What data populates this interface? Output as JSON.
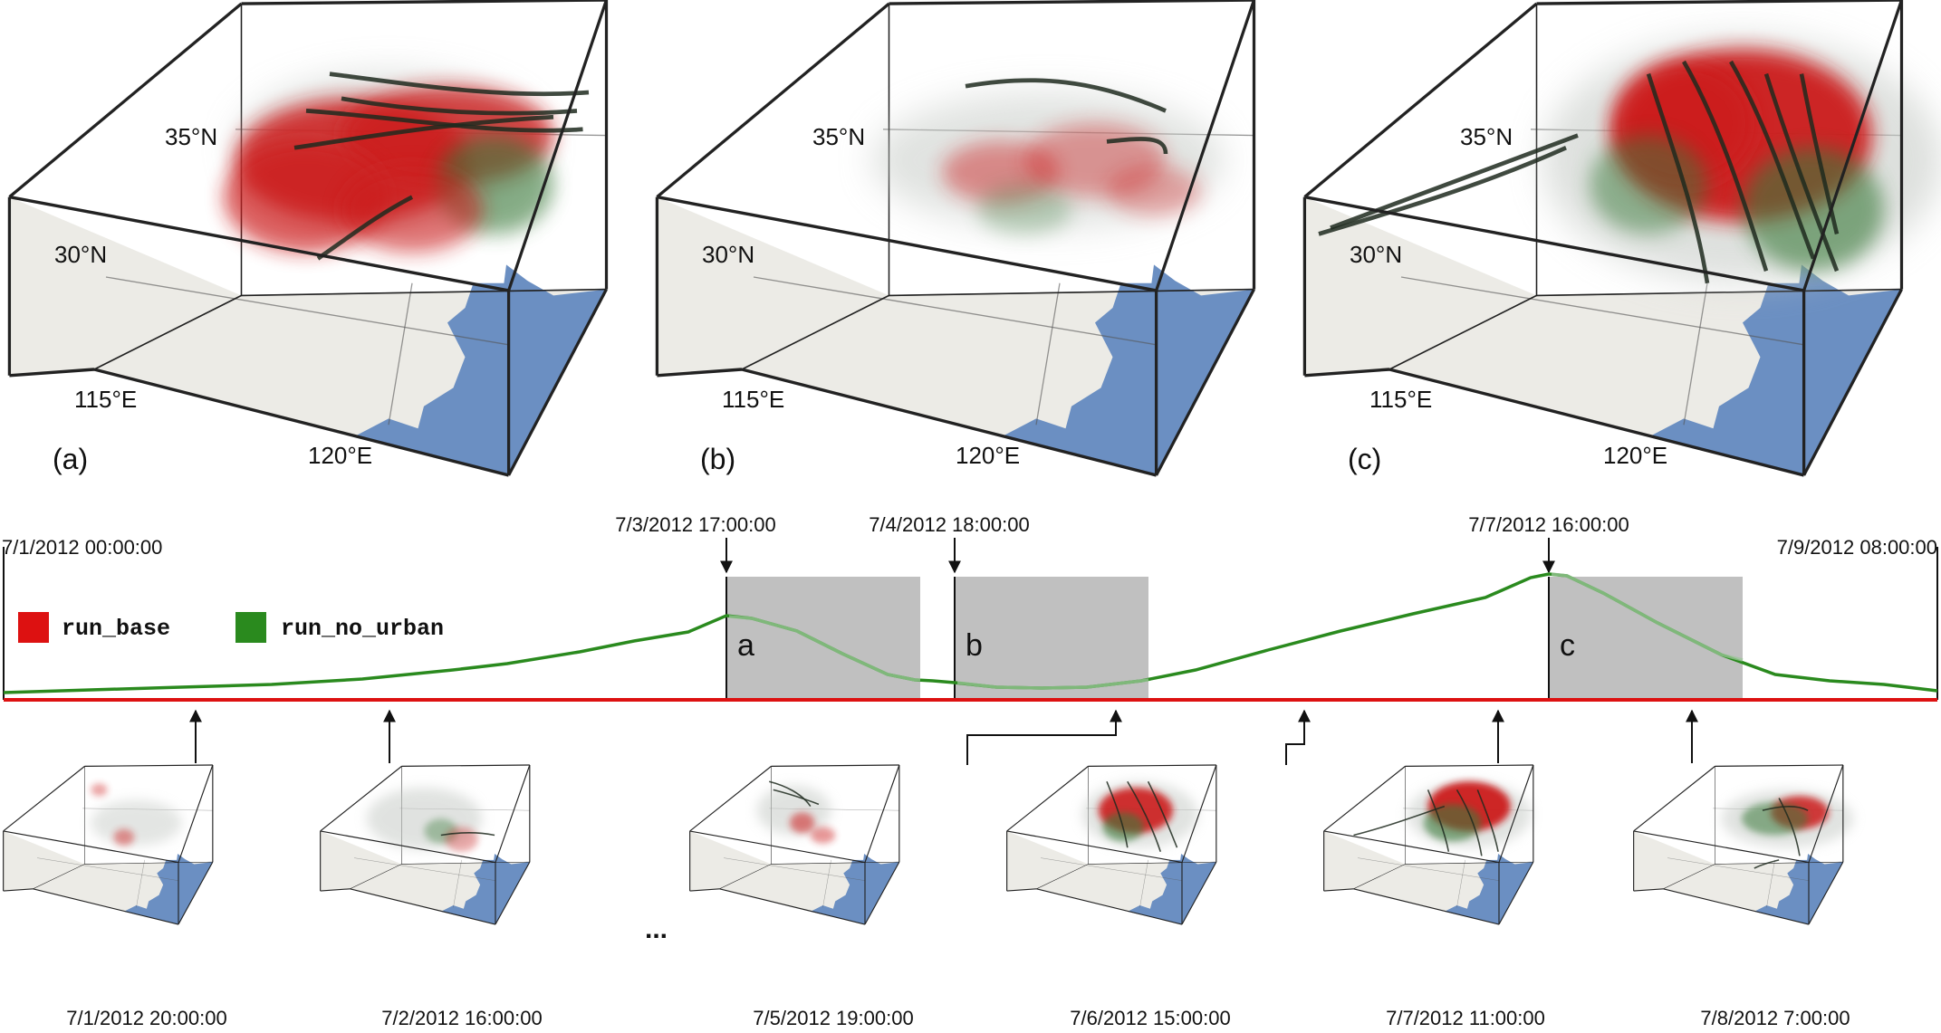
{
  "panels": [
    {
      "tag": "(a)",
      "lat35": "35°N",
      "lat30": "30°N",
      "lon115": "115°E",
      "lon120": "120°E"
    },
    {
      "tag": "(b)",
      "lat35": "35°N",
      "lat30": "30°N",
      "lon115": "115°E",
      "lon120": "120°E"
    },
    {
      "tag": "(c)",
      "lat35": "35°N",
      "lat30": "30°N",
      "lon115": "115°E",
      "lon120": "120°E"
    }
  ],
  "timeline": {
    "start_label": "7/1/2012 00:00:00",
    "end_label": "7/9/2012 08:00:00",
    "markers": [
      {
        "label": "7/3/2012 17:00:00",
        "box": "a"
      },
      {
        "label": "7/4/2012 18:00:00",
        "box": "b"
      },
      {
        "label": "7/7/2012 16:00:00",
        "box": "c"
      }
    ],
    "legend": [
      {
        "name": "run_base",
        "color": "#dd1111"
      },
      {
        "name": "run_no_urban",
        "color": "#2a8a1e"
      }
    ],
    "colors": {
      "base_line": "#dd1111",
      "no_urban_line": "#2a8a1e",
      "window_box": "#c0c0c0"
    }
  },
  "thumbnails": [
    {
      "time": "7/1/2012 20:00:00"
    },
    {
      "time": "7/2/2012 16:00:00"
    },
    {
      "time": "7/5/2012 19:00:00"
    },
    {
      "time": "7/6/2012 15:00:00"
    },
    {
      "time": "7/7/2012 11:00:00"
    },
    {
      "time": "7/8/2012 7:00:00"
    }
  ],
  "ellipsis": "...",
  "colors": {
    "land": "#ecebe6",
    "ocean": "#6b8fc2",
    "storm_red": "#cc1f1f",
    "storm_green": "#3a7a3a",
    "cloud": "#c8ccc8"
  }
}
